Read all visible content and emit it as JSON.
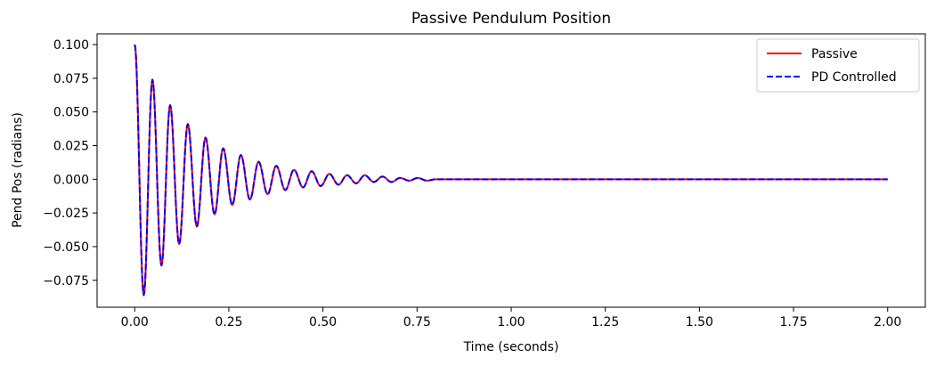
{
  "chart_data": {
    "type": "line",
    "title": "Passive Pendulum Position",
    "xlabel": "Time (seconds)",
    "ylabel": "Pend Pos (radians)",
    "xlim": [
      -0.1,
      2.1
    ],
    "ylim": [
      -0.095,
      0.108
    ],
    "xticks": [
      0.0,
      0.25,
      0.5,
      0.75,
      1.0,
      1.25,
      1.5,
      1.75,
      2.0
    ],
    "xtick_labels": [
      "0.00",
      "0.25",
      "0.50",
      "0.75",
      "1.00",
      "1.25",
      "1.50",
      "1.75",
      "2.00"
    ],
    "yticks": [
      -0.075,
      -0.05,
      -0.025,
      0.0,
      0.025,
      0.05,
      0.075,
      0.1
    ],
    "ytick_labels": [
      "−0.075",
      "−0.050",
      "−0.025",
      "0.000",
      "0.025",
      "0.050",
      "0.075",
      "0.100"
    ],
    "grid": false,
    "legend_position": "top-right",
    "series": [
      {
        "name": "Passive",
        "color": "#ff0000",
        "style": "solid",
        "x": [
          0.0,
          0.024,
          0.047,
          0.071,
          0.094,
          0.118,
          0.141,
          0.165,
          0.188,
          0.212,
          0.235,
          0.259,
          0.282,
          0.306,
          0.329,
          0.353,
          0.376,
          0.4,
          0.423,
          0.447,
          0.47,
          0.494,
          0.517,
          0.541,
          0.564,
          0.588,
          0.611,
          0.635,
          0.658,
          0.682,
          0.705,
          0.729,
          0.752,
          0.776,
          0.8,
          2.0
        ],
        "y": [
          0.1,
          -0.086,
          0.074,
          -0.064,
          0.055,
          -0.048,
          0.041,
          -0.035,
          0.031,
          -0.026,
          0.023,
          -0.019,
          0.018,
          -0.015,
          0.013,
          -0.011,
          0.01,
          -0.008,
          0.007,
          -0.006,
          0.006,
          -0.005,
          0.004,
          -0.004,
          0.003,
          -0.003,
          0.003,
          -0.002,
          0.002,
          -0.002,
          0.001,
          -0.001,
          0.001,
          -0.001,
          0.0,
          0.0
        ]
      },
      {
        "name": "PD Controlled",
        "color": "#0000ff",
        "style": "dashed",
        "x": [
          0.0,
          0.024,
          0.047,
          0.071,
          0.094,
          0.118,
          0.141,
          0.165,
          0.188,
          0.212,
          0.235,
          0.259,
          0.282,
          0.306,
          0.329,
          0.353,
          0.376,
          0.4,
          0.423,
          0.447,
          0.47,
          0.494,
          0.517,
          0.541,
          0.564,
          0.588,
          0.611,
          0.635,
          0.658,
          0.682,
          0.705,
          0.729,
          0.752,
          0.776,
          0.8,
          2.0
        ],
        "y": [
          0.1,
          -0.086,
          0.074,
          -0.064,
          0.055,
          -0.048,
          0.041,
          -0.035,
          0.031,
          -0.026,
          0.023,
          -0.019,
          0.018,
          -0.015,
          0.013,
          -0.011,
          0.01,
          -0.008,
          0.007,
          -0.006,
          0.006,
          -0.005,
          0.004,
          -0.004,
          0.003,
          -0.003,
          0.003,
          -0.002,
          0.002,
          -0.002,
          0.001,
          -0.001,
          0.001,
          -0.001,
          0.0,
          0.0
        ]
      }
    ]
  }
}
